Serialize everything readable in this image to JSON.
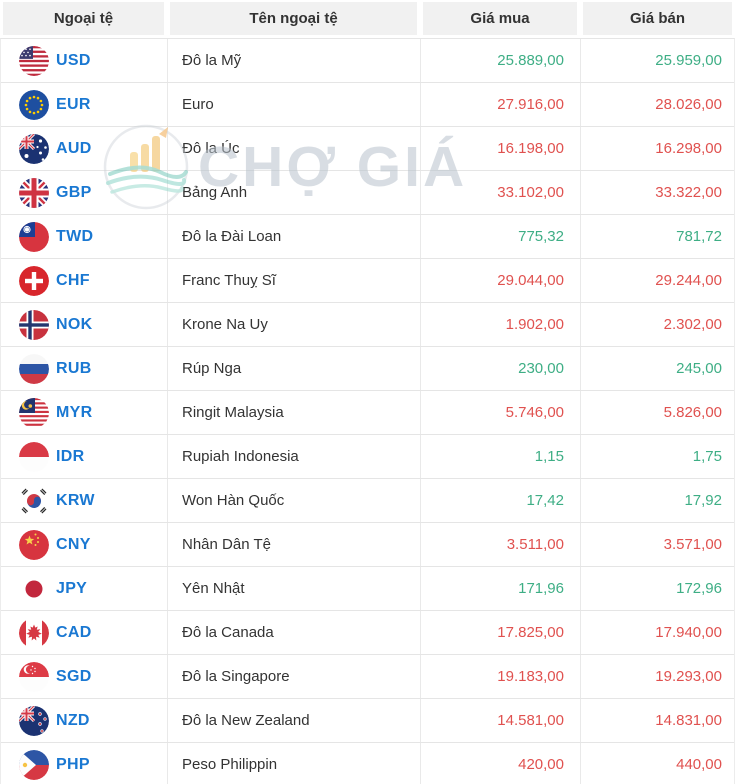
{
  "header": {
    "columns": [
      "Ngoại tệ",
      "Tên ngoại tệ",
      "Giá mua",
      "Giá bán"
    ]
  },
  "watermark": {
    "text": "CHỢ GIÁ"
  },
  "colors": {
    "up": "#3eae85",
    "down": "#e0514f",
    "code_blue": "#1a78d2",
    "header_bg": "#f1f1f1"
  },
  "rows": [
    {
      "code": "USD",
      "name": "Đô la Mỹ",
      "buy": "25.889,00",
      "sell": "25.959,00",
      "trend": "up"
    },
    {
      "code": "EUR",
      "name": "Euro",
      "buy": "27.916,00",
      "sell": "28.026,00",
      "trend": "down"
    },
    {
      "code": "AUD",
      "name": "Đô la Úc",
      "buy": "16.198,00",
      "sell": "16.298,00",
      "trend": "down"
    },
    {
      "code": "GBP",
      "name": "Bảng Anh",
      "buy": "33.102,00",
      "sell": "33.322,00",
      "trend": "down"
    },
    {
      "code": "TWD",
      "name": "Đô la Đài Loan",
      "buy": "775,32",
      "sell": "781,72",
      "trend": "up"
    },
    {
      "code": "CHF",
      "name": "Franc Thuỵ Sĩ",
      "buy": "29.044,00",
      "sell": "29.244,00",
      "trend": "down"
    },
    {
      "code": "NOK",
      "name": "Krone Na Uy",
      "buy": "1.902,00",
      "sell": "2.302,00",
      "trend": "down"
    },
    {
      "code": "RUB",
      "name": "Rúp Nga",
      "buy": "230,00",
      "sell": "245,00",
      "trend": "up"
    },
    {
      "code": "MYR",
      "name": "Ringit Malaysia",
      "buy": "5.746,00",
      "sell": "5.826,00",
      "trend": "down"
    },
    {
      "code": "IDR",
      "name": "Rupiah Indonesia",
      "buy": "1,15",
      "sell": "1,75",
      "trend": "up"
    },
    {
      "code": "KRW",
      "name": "Won Hàn Quốc",
      "buy": "17,42",
      "sell": "17,92",
      "trend": "up"
    },
    {
      "code": "CNY",
      "name": "Nhân Dân Tệ",
      "buy": "3.511,00",
      "sell": "3.571,00",
      "trend": "down"
    },
    {
      "code": "JPY",
      "name": "Yên Nhật",
      "buy": "171,96",
      "sell": "172,96",
      "trend": "up"
    },
    {
      "code": "CAD",
      "name": "Đô la Canada",
      "buy": "17.825,00",
      "sell": "17.940,00",
      "trend": "down"
    },
    {
      "code": "SGD",
      "name": "Đô la Singapore",
      "buy": "19.183,00",
      "sell": "19.293,00",
      "trend": "down"
    },
    {
      "code": "NZD",
      "name": "Đô la New Zealand",
      "buy": "14.581,00",
      "sell": "14.831,00",
      "trend": "down"
    },
    {
      "code": "PHP",
      "name": "Peso Philippin",
      "buy": "420,00",
      "sell": "440,00",
      "trend": "down"
    }
  ]
}
